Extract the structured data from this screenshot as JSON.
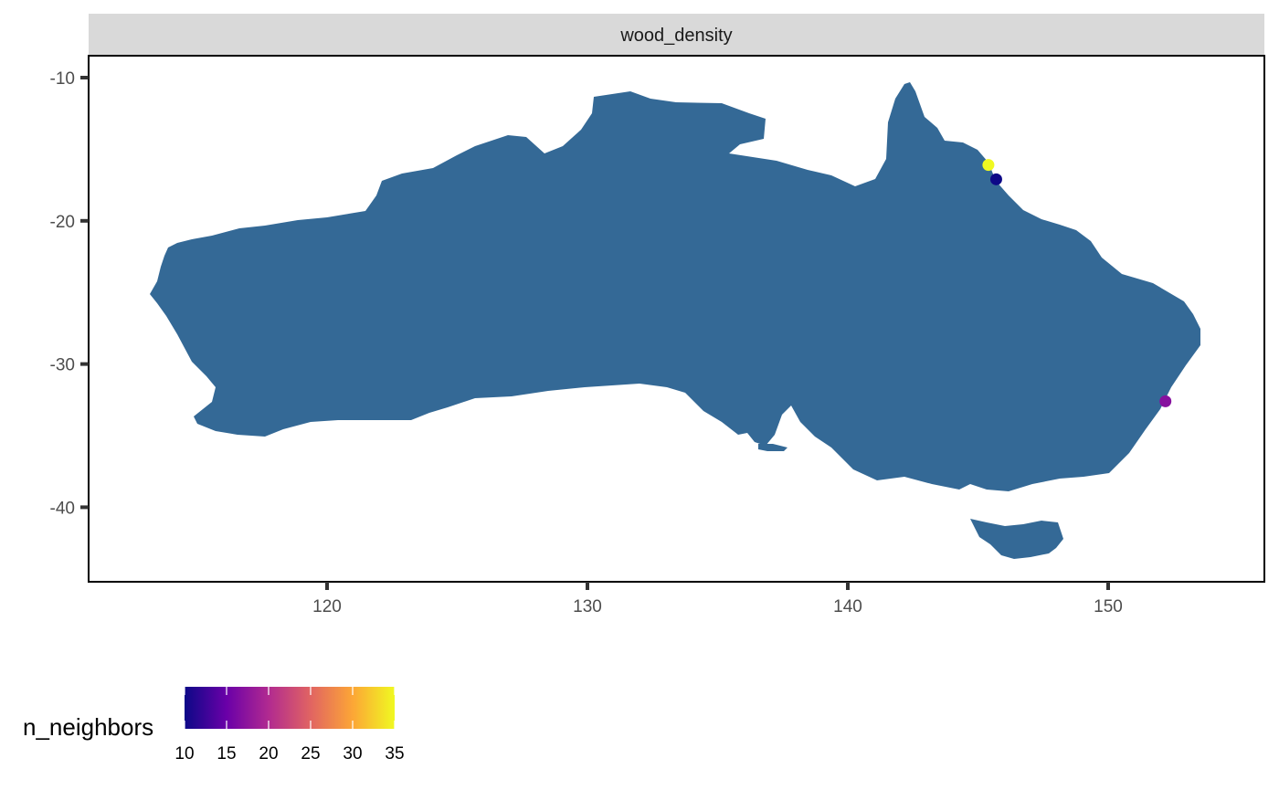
{
  "chart_data": {
    "type": "scatter",
    "panel_title": "wood_density",
    "background_layer": {
      "name": "Australia",
      "fill": "#346996"
    },
    "x_ticks": [
      120,
      130,
      140,
      150
    ],
    "y_ticks": [
      -10,
      -20,
      -30,
      -40
    ],
    "xlim": [
      110.8,
      156.1
    ],
    "ylim": [
      -45.1,
      -8.5
    ],
    "points": [
      {
        "x": 145.4,
        "y": -16.1,
        "n_neighbors": 35
      },
      {
        "x": 145.7,
        "y": -17.1,
        "n_neighbors": 10
      },
      {
        "x": 152.2,
        "y": -32.6,
        "n_neighbors": 17
      }
    ],
    "legend": {
      "title": "n_neighbors",
      "position": "bottom-left",
      "ticks": [
        10,
        15,
        20,
        25,
        30,
        35
      ],
      "range": [
        10,
        35
      ],
      "colors": [
        "#0d0887",
        "#6a00a8",
        "#b12a90",
        "#e16462",
        "#fca636",
        "#f0f921"
      ]
    },
    "colors": {
      "strip_background": "#d9d9d9",
      "panel_border": "#000000",
      "axis_text": "#4d4d4d"
    }
  }
}
